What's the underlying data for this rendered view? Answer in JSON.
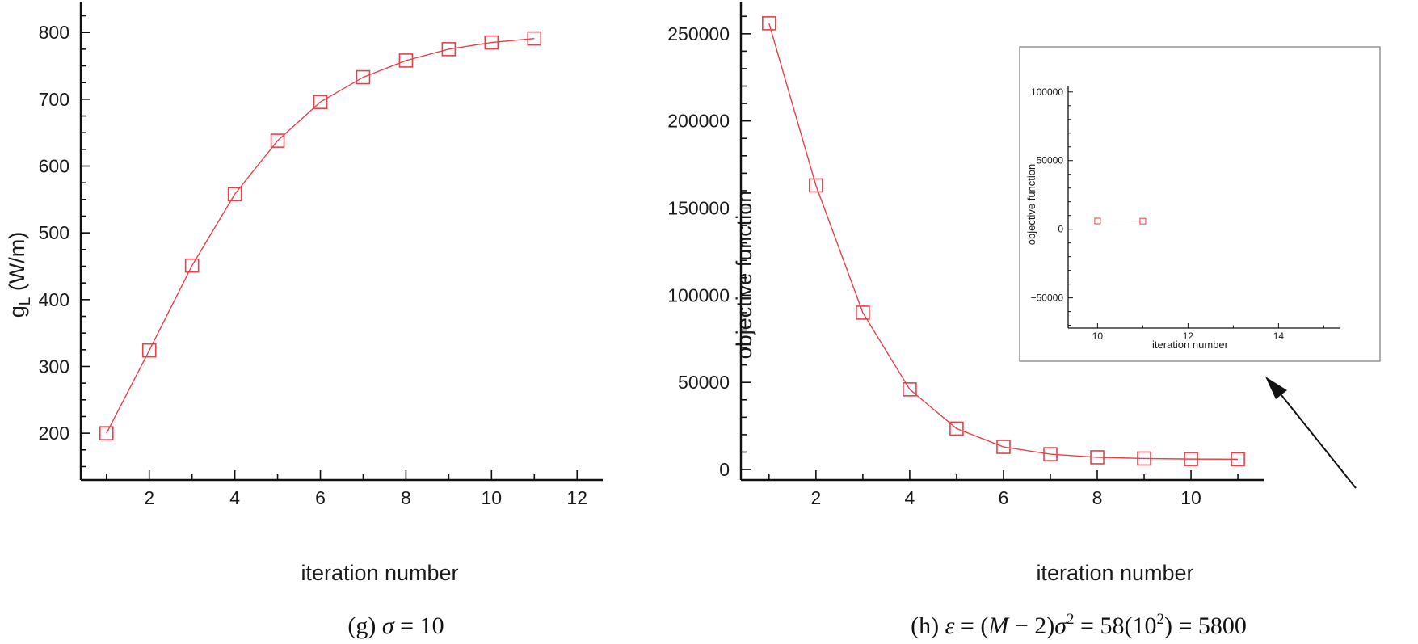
{
  "chart_data": [
    {
      "type": "line",
      "panel": "g",
      "x": [
        1,
        2,
        3,
        4,
        5,
        6,
        7,
        8,
        9,
        10,
        11
      ],
      "series": [
        {
          "values": [
            200,
            324,
            451,
            558,
            638,
            696,
            733,
            758,
            775,
            785,
            791
          ],
          "color": "#e8414a",
          "marker": "square"
        }
      ],
      "xlabel": "iteration number",
      "ylabel": {
        "main": "g",
        "sub": "L",
        "unit": " (W/m)"
      },
      "xlim": [
        0.4,
        12.6
      ],
      "ylim": [
        130,
        845
      ],
      "xticks": [
        2,
        4,
        6,
        8,
        10,
        12
      ],
      "yticks": [
        200,
        300,
        400,
        500,
        600,
        700,
        800
      ],
      "caption": {
        "tag": "(g)",
        "parts": [
          {
            "text": "σ",
            "italic": true
          },
          {
            "text": " = 10",
            "italic": false
          }
        ]
      }
    },
    {
      "type": "line",
      "panel": "h",
      "x": [
        1,
        2,
        3,
        4,
        5,
        6,
        7,
        8,
        9,
        10,
        11
      ],
      "series": [
        {
          "values": [
            256000,
            163000,
            90000,
            46000,
            23500,
            13000,
            8800,
            7000,
            6300,
            6000,
            5900
          ],
          "color": "#e8414a",
          "marker": "square"
        }
      ],
      "xlabel": "iteration number",
      "ylabel": "objective function",
      "xlim": [
        0.4,
        11.55
      ],
      "ylim": [
        -6000,
        268000
      ],
      "xticks": [
        2,
        4,
        6,
        8,
        10
      ],
      "yticks": [
        0,
        50000,
        100000,
        150000,
        200000,
        250000
      ],
      "inset": {
        "x": [
          10,
          11
        ],
        "values": [
          6000,
          5900
        ],
        "xlabel": "iteration number",
        "ylabel": "objective function",
        "xlim": [
          9.35,
          15.35
        ],
        "ylim": [
          -72000,
          104000
        ],
        "xticks": [
          10,
          12,
          14
        ],
        "yticks": [
          -50000,
          0,
          50000,
          100000
        ]
      },
      "caption": {
        "tag": "(h)",
        "parts": [
          {
            "text": "ε",
            "italic": true
          },
          {
            "text": " = (",
            "italic": false
          },
          {
            "text": "M",
            "italic": true
          },
          {
            "text": " − 2)",
            "italic": false
          },
          {
            "text": "σ",
            "italic": true
          },
          {
            "text": "2",
            "italic": false,
            "sup": true
          },
          {
            "text": " = 58(10",
            "italic": false
          },
          {
            "text": "2",
            "italic": false,
            "sup": true
          },
          {
            "text": ") = 5800",
            "italic": false
          }
        ]
      }
    }
  ]
}
